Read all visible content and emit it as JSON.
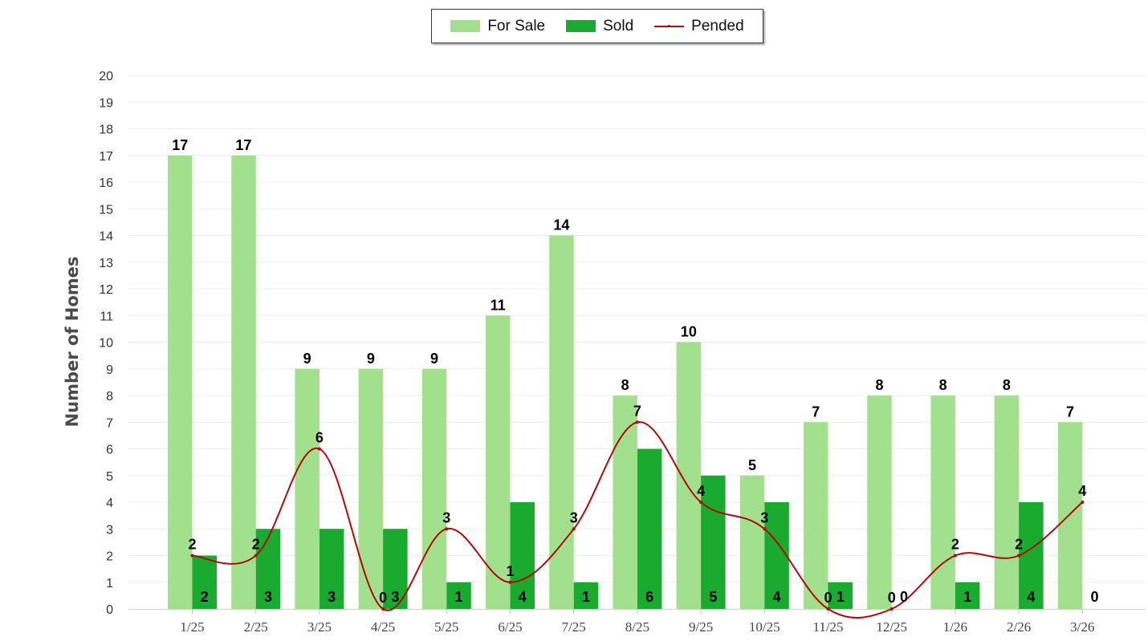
{
  "chart_data": {
    "type": "bar",
    "categories": [
      "1/25",
      "2/25",
      "3/25",
      "4/25",
      "5/25",
      "6/25",
      "7/25",
      "8/25",
      "9/25",
      "10/25",
      "11/25",
      "12/25",
      "1/26",
      "2/26",
      "3/26"
    ],
    "series": [
      {
        "name": "For Sale",
        "type": "bar",
        "color": "#a2e08d",
        "values": [
          17,
          17,
          9,
          9,
          9,
          11,
          14,
          8,
          10,
          5,
          7,
          8,
          8,
          8,
          7
        ]
      },
      {
        "name": "Sold",
        "type": "bar",
        "color": "#1aaa2f",
        "values": [
          2,
          3,
          3,
          3,
          1,
          4,
          1,
          6,
          5,
          4,
          1,
          0,
          1,
          4,
          0
        ]
      },
      {
        "name": "Pended",
        "type": "line",
        "color": "#b00a0a",
        "values": [
          2,
          2,
          6,
          0,
          3,
          1,
          3,
          7,
          4,
          3,
          0,
          0,
          2,
          2,
          4
        ]
      }
    ],
    "title": "",
    "xlabel": "",
    "ylabel": "Number of Homes",
    "ylim": [
      0,
      20
    ],
    "yticks": [
      "0",
      "1",
      "2",
      "3",
      "4",
      "5",
      "6",
      "7",
      "8",
      "9",
      "10",
      "11",
      "12",
      "13",
      "14",
      "15",
      "16",
      "17",
      "18",
      "19",
      "20"
    ],
    "grid": true,
    "legend": "top-center"
  }
}
